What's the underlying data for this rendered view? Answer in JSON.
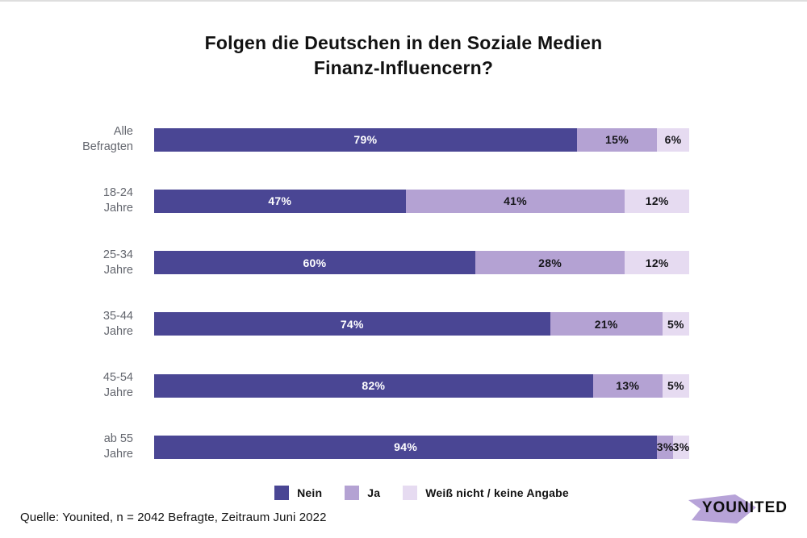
{
  "chart_data": {
    "type": "bar",
    "variant": "horizontal-stacked",
    "title": "Folgen die Deutschen in den Soziale Medien Finanz-Influencern?",
    "title_lines": [
      "Folgen die Deutschen in den Soziale Medien",
      "Finanz-Influencern?"
    ],
    "value_suffix": "%",
    "xlim": [
      0,
      100
    ],
    "grid": false,
    "legend_position": "bottom",
    "categories": [
      "Alle Befragten",
      "18-24 Jahre",
      "25-34 Jahre",
      "35-44 Jahre",
      "45-54 Jahre",
      "ab 55 Jahre"
    ],
    "series": [
      {
        "key": "nein",
        "name": "Nein",
        "color": "#4a4694",
        "label_color": "#ffffff",
        "values": [
          79,
          47,
          60,
          74,
          82,
          94
        ]
      },
      {
        "key": "ja",
        "name": "Ja",
        "color": "#b4a2d3",
        "label_color": "#16161a",
        "values": [
          15,
          41,
          28,
          21,
          13,
          3
        ]
      },
      {
        "key": "weiss-nicht",
        "name": "Weiß nicht / keine Angabe",
        "color": "#e6dbf1",
        "label_color": "#16161a",
        "values": [
          6,
          12,
          12,
          5,
          5,
          3
        ]
      }
    ]
  },
  "footer": {
    "source": "Quelle: Younited, n = 2042 Befragte, Zeitraum Juni 2022",
    "logo_text": "YOUNITED",
    "logo_flag_color": "#b7a3d8"
  }
}
